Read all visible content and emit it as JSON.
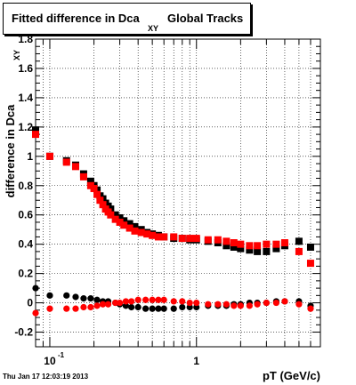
{
  "title": {
    "main": "Fitted difference in Dca",
    "subscript": "XY",
    "tail": "Global Tracks"
  },
  "timestamp": "Thu Jan 17 12:03:19 2013",
  "chart_data": {
    "type": "scatter",
    "xscale": "log",
    "xlim": [
      0.08,
      7.0
    ],
    "ylim": [
      -0.3,
      1.8
    ],
    "grid": true,
    "xlabel": "pT (GeV/c)",
    "ylabel": "difference in Dca",
    "ylabel_sub": "XY",
    "yticks": [
      -0.2,
      0,
      0.2,
      0.4,
      0.6,
      0.8,
      1,
      1.2,
      1.4,
      1.6,
      1.8
    ],
    "ytick_labels": [
      "-0.2",
      "0",
      "0.2",
      "0.4",
      "0.6",
      "0.8",
      "1",
      "1.2",
      "1.4",
      "1.6",
      "1.8"
    ],
    "xticks_major": [
      0.1,
      1
    ],
    "xtick_labels": [
      "10",
      "1"
    ],
    "xtick_label_exp": [
      "-1",
      ""
    ],
    "series": [
      {
        "color": "#000000",
        "marker": "square",
        "x": [
          0.08,
          0.1,
          0.13,
          0.15,
          0.17,
          0.19,
          0.2,
          0.21,
          0.22,
          0.23,
          0.24,
          0.25,
          0.26,
          0.28,
          0.3,
          0.32,
          0.35,
          0.38,
          0.42,
          0.46,
          0.5,
          0.55,
          0.6,
          0.7,
          0.8,
          0.9,
          1.0,
          1.2,
          1.4,
          1.6,
          1.8,
          2.0,
          2.3,
          2.6,
          3.0,
          3.5,
          4.0,
          5.0,
          6.0
        ],
        "y": [
          1.18,
          1.0,
          0.97,
          0.94,
          0.88,
          0.83,
          0.8,
          0.77,
          0.73,
          0.71,
          0.68,
          0.66,
          0.64,
          0.6,
          0.58,
          0.56,
          0.54,
          0.52,
          0.5,
          0.48,
          0.47,
          0.46,
          0.45,
          0.44,
          0.44,
          0.43,
          0.43,
          0.42,
          0.41,
          0.39,
          0.38,
          0.37,
          0.36,
          0.35,
          0.35,
          0.37,
          0.39,
          0.42,
          0.38
        ]
      },
      {
        "color": "#ff0000",
        "marker": "square",
        "x": [
          0.08,
          0.1,
          0.13,
          0.15,
          0.17,
          0.19,
          0.2,
          0.21,
          0.22,
          0.23,
          0.24,
          0.25,
          0.26,
          0.28,
          0.3,
          0.32,
          0.35,
          0.38,
          0.42,
          0.46,
          0.5,
          0.55,
          0.6,
          0.7,
          0.8,
          0.9,
          1.0,
          1.2,
          1.4,
          1.6,
          1.8,
          2.0,
          2.3,
          2.6,
          3.0,
          3.5,
          4.0,
          5.0,
          6.0
        ],
        "y": [
          1.15,
          1.0,
          0.96,
          0.93,
          0.86,
          0.8,
          0.78,
          0.74,
          0.7,
          0.67,
          0.64,
          0.62,
          0.6,
          0.57,
          0.55,
          0.53,
          0.51,
          0.49,
          0.48,
          0.47,
          0.46,
          0.45,
          0.45,
          0.45,
          0.44,
          0.44,
          0.44,
          0.43,
          0.43,
          0.42,
          0.41,
          0.4,
          0.39,
          0.39,
          0.4,
          0.4,
          0.41,
          0.35,
          0.27
        ]
      },
      {
        "color": "#000000",
        "marker": "circle",
        "x": [
          0.08,
          0.1,
          0.13,
          0.15,
          0.17,
          0.19,
          0.21,
          0.23,
          0.25,
          0.28,
          0.3,
          0.33,
          0.36,
          0.4,
          0.45,
          0.5,
          0.55,
          0.6,
          0.7,
          0.8,
          0.9,
          1.0,
          1.2,
          1.4,
          1.6,
          1.8,
          2.0,
          2.3,
          2.6,
          3.0,
          3.5,
          4.0,
          5.0,
          6.0
        ],
        "y": [
          0.1,
          0.05,
          0.05,
          0.04,
          0.03,
          0.03,
          0.02,
          0.01,
          0.01,
          0.0,
          -0.01,
          -0.02,
          -0.03,
          -0.03,
          -0.04,
          -0.04,
          -0.04,
          -0.04,
          -0.04,
          -0.03,
          -0.03,
          -0.03,
          -0.02,
          -0.02,
          -0.02,
          -0.01,
          -0.01,
          0.0,
          0.0,
          0.0,
          0.01,
          0.01,
          0.01,
          -0.02
        ]
      },
      {
        "color": "#ff0000",
        "marker": "circle",
        "x": [
          0.08,
          0.1,
          0.13,
          0.15,
          0.17,
          0.19,
          0.21,
          0.23,
          0.25,
          0.28,
          0.3,
          0.33,
          0.36,
          0.4,
          0.45,
          0.5,
          0.55,
          0.6,
          0.7,
          0.8,
          0.9,
          1.0,
          1.2,
          1.4,
          1.6,
          1.8,
          2.0,
          2.3,
          2.6,
          3.0,
          3.5,
          4.0,
          5.0,
          6.0
        ],
        "y": [
          -0.07,
          -0.04,
          -0.04,
          -0.04,
          -0.03,
          -0.03,
          -0.02,
          -0.01,
          -0.01,
          0.0,
          0.0,
          0.01,
          0.01,
          0.02,
          0.02,
          0.02,
          0.02,
          0.02,
          0.01,
          0.01,
          0.0,
          0.0,
          -0.01,
          -0.01,
          -0.01,
          -0.02,
          -0.02,
          -0.02,
          -0.01,
          0.0,
          0.0,
          0.01,
          -0.01,
          -0.04
        ]
      }
    ]
  }
}
